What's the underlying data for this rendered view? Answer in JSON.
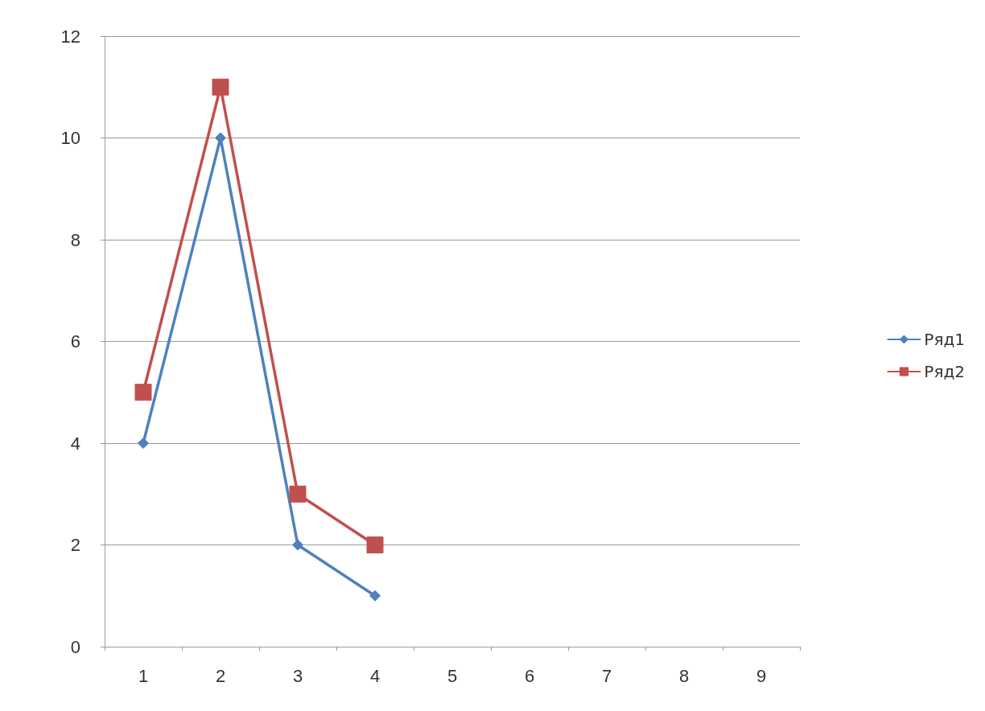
{
  "chart_data": {
    "type": "line",
    "categories": [
      "1",
      "2",
      "3",
      "4",
      "5",
      "6",
      "7",
      "8",
      "9"
    ],
    "series": [
      {
        "name": "Ряд1",
        "color": "#4f81bd",
        "marker": "diamond",
        "values": [
          4,
          10,
          2,
          1,
          null,
          null,
          null,
          null,
          null
        ]
      },
      {
        "name": "Ряд2",
        "color": "#c0504d",
        "marker": "square",
        "values": [
          5,
          11,
          3,
          2,
          null,
          null,
          null,
          null,
          null
        ]
      }
    ],
    "ylim": [
      0,
      12
    ],
    "yticks": [
      0,
      2,
      4,
      6,
      8,
      10,
      12
    ],
    "grid": "y",
    "legend": "right"
  }
}
